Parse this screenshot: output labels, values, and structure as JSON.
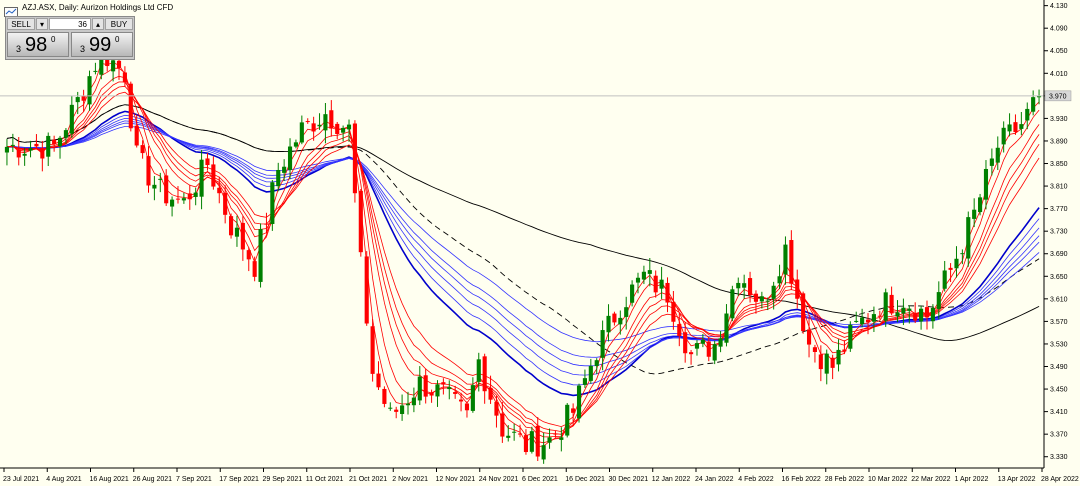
{
  "chart_title": "AZJ.ASX, Daily:  Aurizon Holdings Ltd CFD",
  "trade_panel": {
    "sell_label": "SELL",
    "buy_label": "BUY",
    "volume": "36",
    "sell_prefix": "3",
    "sell_big": "98",
    "sell_sup": "0",
    "buy_prefix": "3",
    "buy_big": "99",
    "buy_sup": "0"
  },
  "chart_data": {
    "type": "candlestick",
    "symbol": "AZJ.ASX",
    "timeframe": "Daily",
    "instrument": "Aurizon Holdings Ltd CFD",
    "current_price": 3.97,
    "current_price_label": "3.970",
    "ylim": [
      3.31,
      4.14
    ],
    "y_ticks": [
      "4.130",
      "4.090",
      "4.050",
      "4.010",
      "3.970",
      "3.930",
      "3.890",
      "3.850",
      "3.810",
      "3.770",
      "3.730",
      "3.690",
      "3.650",
      "3.610",
      "3.570",
      "3.530",
      "3.490",
      "3.450",
      "3.410",
      "3.370",
      "3.330"
    ],
    "x_ticks": [
      "23 Jul 2021",
      "4 Aug 2021",
      "16 Aug 2021",
      "26 Aug 2021",
      "7 Sep 2021",
      "17 Sep 2021",
      "29 Sep 2021",
      "11 Oct 2021",
      "21 Oct 2021",
      "2 Nov 2021",
      "12 Nov 2021",
      "24 Nov 2021",
      "6 Dec 2021",
      "16 Dec 2021",
      "30 Dec 2021",
      "12 Jan 2022",
      "24 Jan 2022",
      "4 Feb 2022",
      "16 Feb 2022",
      "28 Feb 2022",
      "10 Mar 2022",
      "22 Mar 2022",
      "1 Apr 2022",
      "13 Apr 2022",
      "28 Apr 2022"
    ],
    "candle_colors": {
      "up": "#008000",
      "down": "#ff0000"
    },
    "close_anchors": [
      [
        0,
        3.88
      ],
      [
        8,
        3.88
      ],
      [
        12,
        3.96
      ],
      [
        16,
        4.05
      ],
      [
        20,
        4.01
      ],
      [
        22,
        3.86
      ],
      [
        26,
        3.8
      ],
      [
        30,
        3.78
      ],
      [
        34,
        3.85
      ],
      [
        38,
        3.74
      ],
      [
        42,
        3.67
      ],
      [
        46,
        3.84
      ],
      [
        50,
        3.91
      ],
      [
        54,
        3.94
      ],
      [
        58,
        3.91
      ],
      [
        60,
        3.67
      ],
      [
        62,
        3.48
      ],
      [
        65,
        3.4
      ],
      [
        70,
        3.46
      ],
      [
        74,
        3.44
      ],
      [
        78,
        3.4
      ],
      [
        80,
        3.5
      ],
      [
        84,
        3.38
      ],
      [
        88,
        3.35
      ],
      [
        92,
        3.36
      ],
      [
        96,
        3.41
      ],
      [
        100,
        3.52
      ],
      [
        104,
        3.6
      ],
      [
        108,
        3.65
      ],
      [
        112,
        3.62
      ],
      [
        116,
        3.51
      ],
      [
        120,
        3.53
      ],
      [
        124,
        3.66
      ],
      [
        128,
        3.6
      ],
      [
        132,
        3.7
      ],
      [
        136,
        3.53
      ],
      [
        140,
        3.49
      ],
      [
        144,
        3.56
      ],
      [
        148,
        3.6
      ],
      [
        152,
        3.61
      ],
      [
        156,
        3.58
      ],
      [
        160,
        3.66
      ],
      [
        164,
        3.76
      ],
      [
        168,
        3.88
      ],
      [
        172,
        3.92
      ],
      [
        175,
        3.97
      ]
    ],
    "bar_count": 176,
    "moving_averages": {
      "short_term_red": [
        3,
        5,
        8,
        10,
        12,
        15
      ],
      "long_term_blue": [
        30,
        35,
        40,
        45,
        50,
        60
      ],
      "black_solid": 100,
      "black_dashed": 50
    }
  }
}
